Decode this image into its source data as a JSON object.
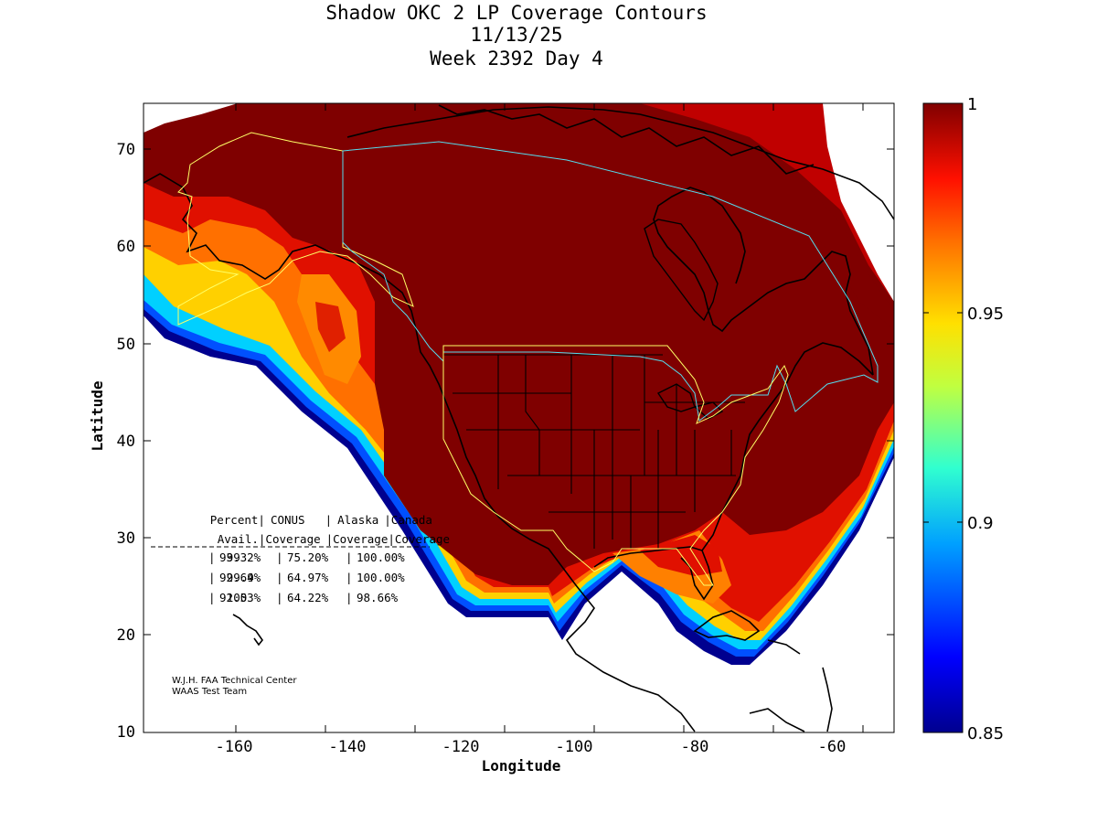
{
  "title": {
    "line1": "Shadow OKC 2 LP Coverage Contours",
    "line2": "11/13/25",
    "line3": "Week 2392 Day 4"
  },
  "axes": {
    "xlabel": "Longitude",
    "ylabel": "Latitude",
    "xticks": [
      "-160",
      "-140",
      "-120",
      "-100",
      "-80",
      "-60"
    ],
    "yticks": [
      "10",
      "20",
      "30",
      "40",
      "50",
      "60",
      "70"
    ]
  },
  "colorbar": {
    "ticks": [
      "1",
      "0.95",
      "0.9",
      "0.85"
    ]
  },
  "table": {
    "header1": [
      "Percent|",
      "CONUS",
      "|",
      "Alaska",
      "|Canada"
    ],
    "header2": [
      "Avail.|Coverage",
      "|Coverage|Coverage"
    ],
    "rows": [
      [
        "99",
        "93.32%",
        "75.20%",
        "100.00%"
      ],
      [
        "99.9",
        "92.64%",
        "64.97%",
        "100.00%"
      ],
      [
        "100",
        "92.53%",
        "64.22%",
        "98.66%"
      ]
    ]
  },
  "credit": {
    "line1": "W.J.H. FAA Technical Center",
    "line2": "WAAS Test Team"
  },
  "colors": {
    "dark_red": "#7f0000",
    "red": "#c80000",
    "orange": "#ff7000",
    "yellow": "#ffd000",
    "cyan": "#00d0ff",
    "blue": "#0030ff",
    "navy": "#00008f",
    "service_boundary_yellow": "#ffff66",
    "service_boundary_cyan": "#44ddee"
  }
}
